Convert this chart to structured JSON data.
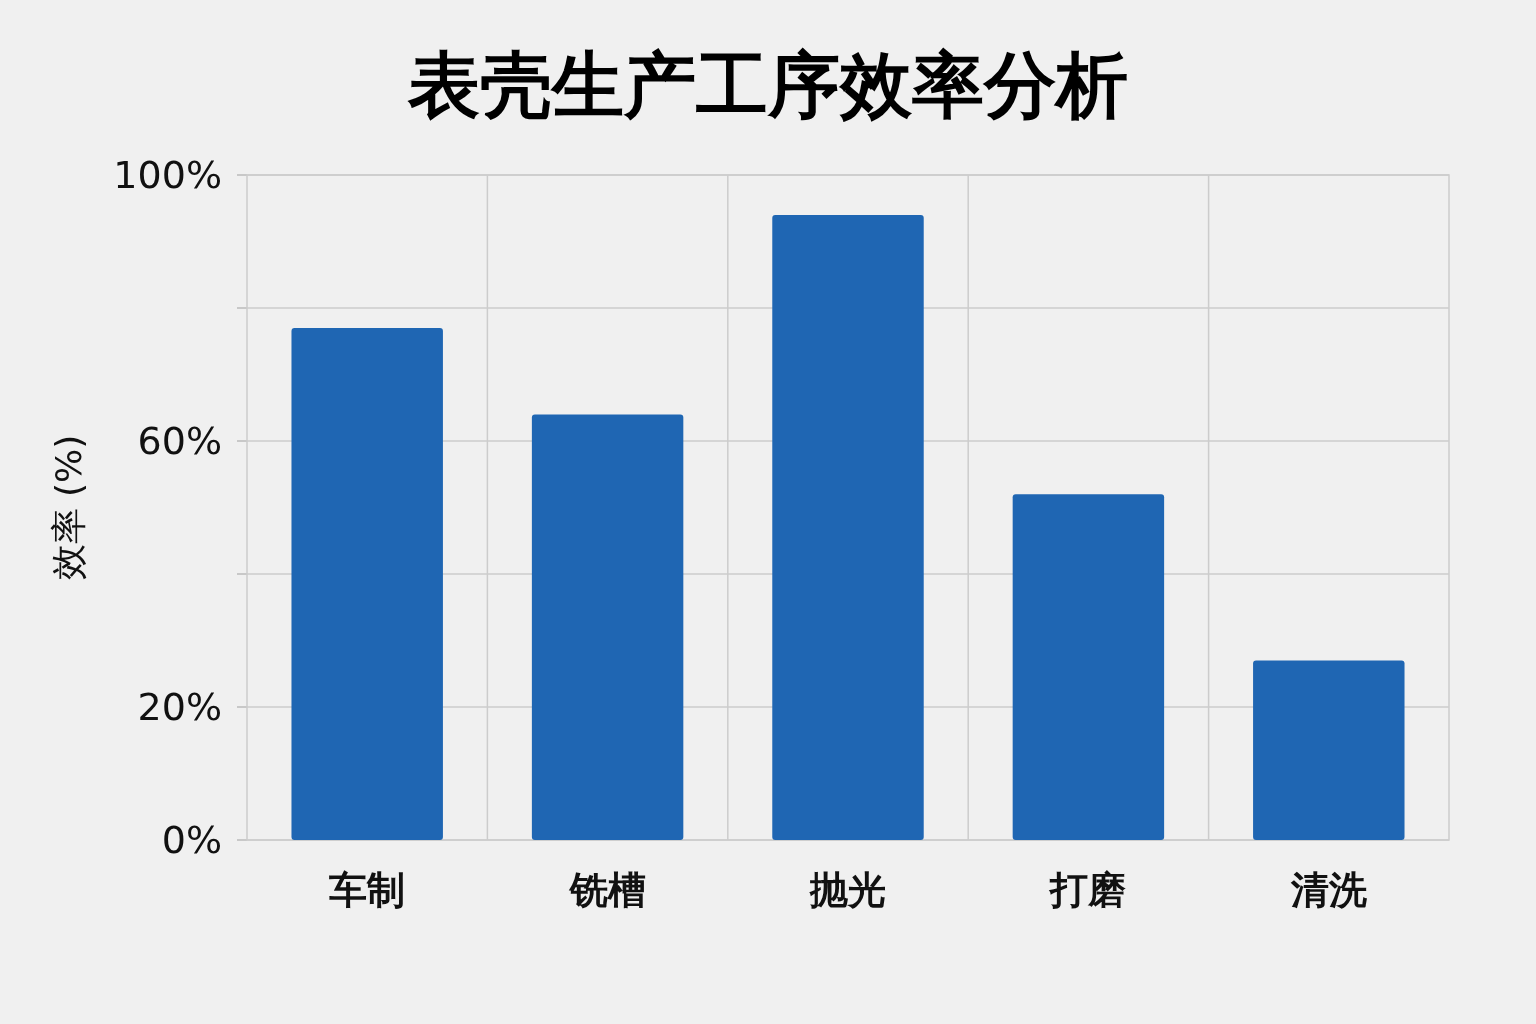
{
  "chart_data": {
    "type": "bar",
    "title": "表壳生产工序效率分析",
    "ylabel": "效率 (%)",
    "categories": [
      "车制",
      "铣槽",
      "抛光",
      "打磨",
      "清洗"
    ],
    "values": [
      77,
      64,
      94,
      52,
      27
    ],
    "color": "#1f66b3",
    "ylim": [
      0,
      100
    ],
    "yticks": [
      {
        "value": 0,
        "label": "0%"
      },
      {
        "value": 20,
        "label": "20%"
      },
      {
        "value": 40,
        "label": null
      },
      {
        "value": 60,
        "label": "60%"
      },
      {
        "value": 80,
        "label": null
      },
      {
        "value": 100,
        "label": "100%"
      }
    ],
    "grid": true
  }
}
